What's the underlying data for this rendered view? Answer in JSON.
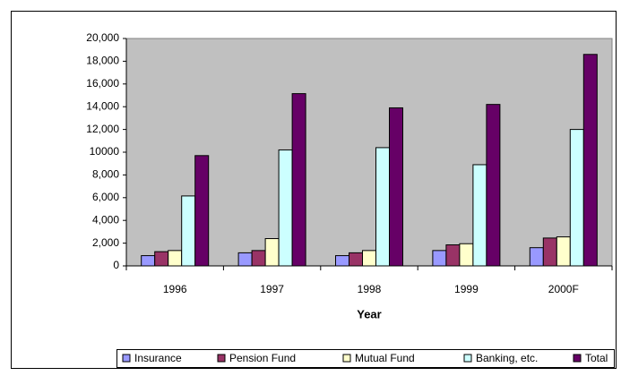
{
  "chart_data": {
    "type": "bar",
    "x_label": "Year",
    "categories": [
      "1996",
      "1997",
      "1998",
      "1999",
      "2000F"
    ],
    "series": [
      {
        "name": "Insurance",
        "color": "#9999ff",
        "values": [
          900,
          1150,
          900,
          1350,
          1600
        ]
      },
      {
        "name": "Pension Fund",
        "color": "#993366",
        "values": [
          1250,
          1350,
          1150,
          1850,
          2450
        ]
      },
      {
        "name": "Mutual Fund",
        "color": "#ffffcc",
        "values": [
          1350,
          2400,
          1350,
          1950,
          2550
        ]
      },
      {
        "name": "Banking, etc.",
        "color": "#ccffff",
        "values": [
          6150,
          10200,
          10400,
          8900,
          12000
        ]
      },
      {
        "name": "Total",
        "color": "#660066",
        "values": [
          9700,
          15150,
          13900,
          14200,
          18600
        ]
      }
    ],
    "ylim": [
      0,
      20000
    ],
    "yticks": [
      0,
      {
        "value": 2000,
        "label": "2,000"
      },
      {
        "value": 4000,
        "label": "4,000"
      },
      {
        "value": 6000,
        "label": "6,000"
      },
      {
        "value": 8000,
        "label": "8,000"
      },
      10000,
      {
        "value": 12000,
        "label": "12,000"
      },
      {
        "value": 14000,
        "label": "14,000"
      },
      {
        "value": 16000,
        "label": "16,000"
      },
      {
        "value": 18000,
        "label": "18,000"
      },
      {
        "value": 20000,
        "label": "20,000"
      }
    ],
    "plot_background": "#c0c0c0",
    "legend": "bottom"
  }
}
